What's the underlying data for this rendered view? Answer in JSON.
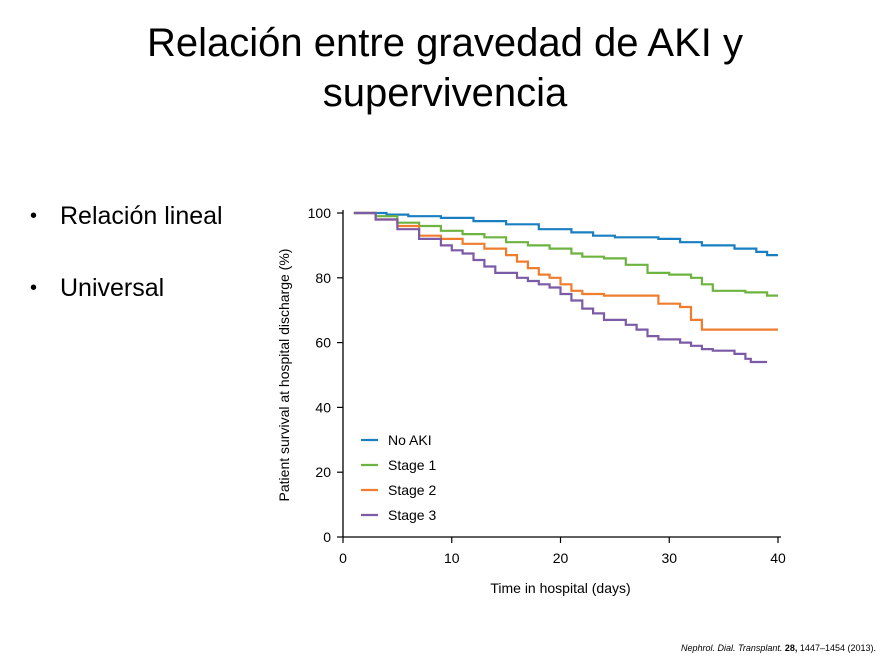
{
  "slide": {
    "title_line1": "Relación entre gravedad de AKI y",
    "title_line2": "supervivencia",
    "bullets": [
      "Relación lineal",
      "Universal"
    ],
    "bullet_glyph": "•",
    "citation": {
      "journal": "Nephrol. Dial. Transplant.",
      "volume": "28,",
      "pages": "1447–1454 (2013)."
    }
  },
  "chart_data": {
    "type": "line",
    "line_shape": "step",
    "xlabel": "Time in hospital (days)",
    "ylabel": "Patient survival at hospital discharge (%)",
    "xlim": [
      0,
      40
    ],
    "ylim": [
      0,
      100
    ],
    "xticks": [
      0,
      10,
      20,
      30,
      40
    ],
    "yticks": [
      0,
      20,
      40,
      60,
      80,
      100
    ],
    "grid": false,
    "legend_position": "bottom-left",
    "series": [
      {
        "name": "No AKI",
        "color": "#1a7fc1",
        "points": [
          [
            1,
            100
          ],
          [
            4,
            99.5
          ],
          [
            6,
            99
          ],
          [
            9,
            98.5
          ],
          [
            12,
            97.5
          ],
          [
            15,
            96.5
          ],
          [
            18,
            95
          ],
          [
            21,
            94
          ],
          [
            23,
            93
          ],
          [
            25,
            92.5
          ],
          [
            29,
            92
          ],
          [
            31,
            91
          ],
          [
            33,
            90
          ],
          [
            36,
            89
          ],
          [
            38,
            88
          ],
          [
            39,
            87
          ],
          [
            40,
            87
          ]
        ]
      },
      {
        "name": "Stage 1",
        "color": "#6cb33f",
        "points": [
          [
            1,
            100
          ],
          [
            3,
            99
          ],
          [
            5,
            97
          ],
          [
            7,
            96
          ],
          [
            9,
            94.5
          ],
          [
            11,
            93.5
          ],
          [
            13,
            92.5
          ],
          [
            15,
            91
          ],
          [
            17,
            90
          ],
          [
            19,
            89
          ],
          [
            21,
            87.5
          ],
          [
            22,
            86.5
          ],
          [
            24,
            86
          ],
          [
            26,
            84
          ],
          [
            28,
            81.5
          ],
          [
            30,
            81
          ],
          [
            32,
            80
          ],
          [
            33,
            78
          ],
          [
            34,
            76
          ],
          [
            37,
            75.5
          ],
          [
            39,
            74.5
          ],
          [
            40,
            74.5
          ]
        ]
      },
      {
        "name": "Stage 2",
        "color": "#f07d2e",
        "points": [
          [
            1,
            100
          ],
          [
            3,
            98
          ],
          [
            5,
            96
          ],
          [
            7,
            93
          ],
          [
            9,
            92
          ],
          [
            11,
            90.5
          ],
          [
            13,
            89
          ],
          [
            15,
            87
          ],
          [
            16,
            85
          ],
          [
            17,
            83
          ],
          [
            18,
            81
          ],
          [
            19,
            80
          ],
          [
            20,
            78
          ],
          [
            21,
            76
          ],
          [
            22,
            75
          ],
          [
            24,
            74.5
          ],
          [
            28,
            74.5
          ],
          [
            29,
            72
          ],
          [
            31,
            71
          ],
          [
            32,
            67
          ],
          [
            33,
            64
          ],
          [
            35,
            64
          ],
          [
            40,
            64
          ]
        ]
      },
      {
        "name": "Stage 3",
        "color": "#7b5aa6",
        "points": [
          [
            1,
            100
          ],
          [
            3,
            98
          ],
          [
            5,
            95
          ],
          [
            7,
            92
          ],
          [
            9,
            90
          ],
          [
            10,
            88.5
          ],
          [
            11,
            87.5
          ],
          [
            12,
            85.5
          ],
          [
            13,
            83.5
          ],
          [
            14,
            81.5
          ],
          [
            16,
            80
          ],
          [
            17,
            79
          ],
          [
            18,
            78
          ],
          [
            19,
            77
          ],
          [
            20,
            75
          ],
          [
            21,
            73
          ],
          [
            22,
            70.5
          ],
          [
            23,
            69
          ],
          [
            24,
            67
          ],
          [
            26,
            65.5
          ],
          [
            27,
            64
          ],
          [
            28,
            62
          ],
          [
            29,
            61
          ],
          [
            31,
            60
          ],
          [
            32,
            59
          ],
          [
            33,
            58
          ],
          [
            34,
            57.5
          ],
          [
            36,
            56.5
          ],
          [
            37,
            55
          ],
          [
            37.5,
            54
          ],
          [
            38,
            54
          ],
          [
            39,
            54
          ]
        ]
      }
    ]
  }
}
